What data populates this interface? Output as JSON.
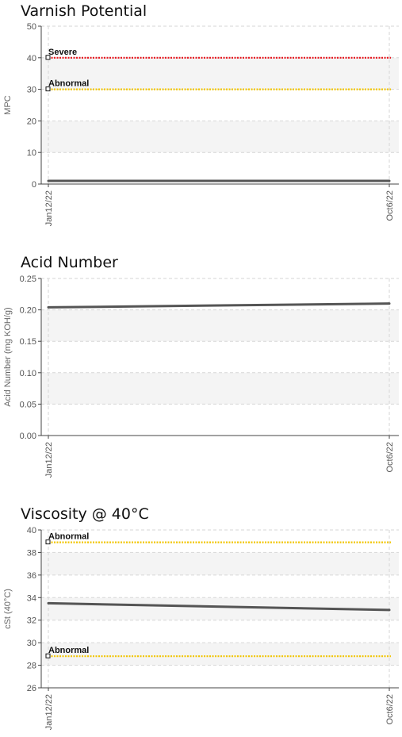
{
  "chart_data": [
    {
      "type": "line",
      "title": "Varnish Potential",
      "xlabel": "",
      "ylabel": "MPC",
      "ylim": [
        0,
        50
      ],
      "yticks": [
        "0",
        "10",
        "20",
        "30",
        "40",
        "50"
      ],
      "ytick_values": [
        0,
        10,
        20,
        30,
        40,
        50
      ],
      "x": [
        "Jan12/22",
        "Oct6/22"
      ],
      "series": [
        {
          "name": "",
          "values": [
            1,
            1
          ],
          "color": "#555555"
        }
      ],
      "thresholds": [
        {
          "label": "Severe",
          "value": 40,
          "color": "#e8141c"
        },
        {
          "label": "Abnormal",
          "value": 30,
          "color": "#f2c500"
        }
      ],
      "grid": true
    },
    {
      "type": "line",
      "title": "Acid Number",
      "xlabel": "",
      "ylabel": "Acid Number (mg KOH/g)",
      "ylim": [
        0,
        0.25
      ],
      "yticks": [
        "0.00",
        "0.05",
        "0.10",
        "0.15",
        "0.20",
        "0.25"
      ],
      "ytick_values": [
        0,
        0.05,
        0.1,
        0.15,
        0.2,
        0.25
      ],
      "x": [
        "Jan12/22",
        "Oct6/22"
      ],
      "series": [
        {
          "name": "",
          "values": [
            0.204,
            0.21
          ],
          "color": "#555555"
        }
      ],
      "thresholds": [],
      "grid": true
    },
    {
      "type": "line",
      "title": "Viscosity @ 40°C",
      "xlabel": "",
      "ylabel": "cSt (40°C)",
      "ylim": [
        26,
        40
      ],
      "yticks": [
        "26",
        "28",
        "30",
        "32",
        "34",
        "36",
        "38",
        "40"
      ],
      "ytick_values": [
        26,
        28,
        30,
        32,
        34,
        36,
        38,
        40
      ],
      "x": [
        "Jan12/22",
        "Oct6/22"
      ],
      "series": [
        {
          "name": "",
          "values": [
            33.5,
            32.9
          ],
          "color": "#555555"
        }
      ],
      "thresholds": [
        {
          "label": "Abnormal",
          "value": 38.9,
          "color": "#f2c500"
        },
        {
          "label": "Abnormal",
          "value": 28.8,
          "color": "#f2c500"
        }
      ],
      "grid": true
    }
  ]
}
